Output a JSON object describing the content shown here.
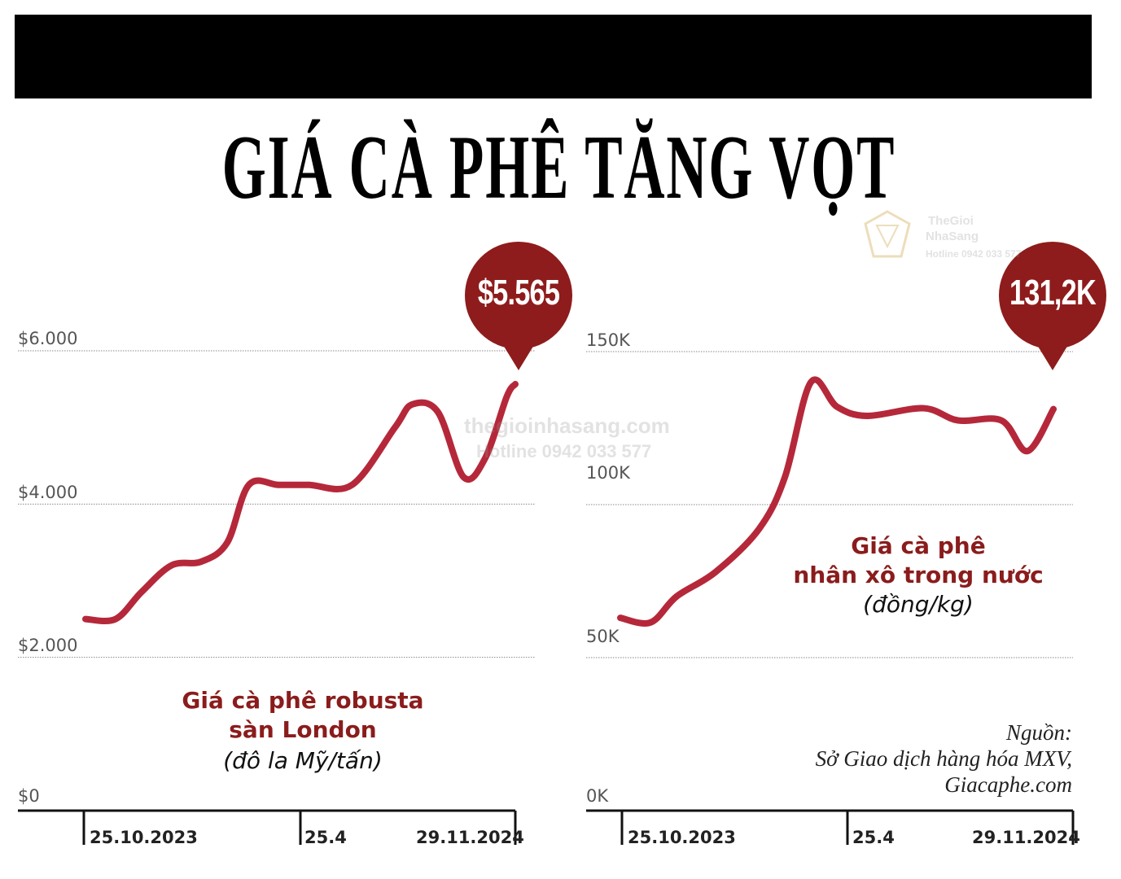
{
  "title": "GIÁ CÀ PHÊ TĂNG VỌT",
  "colors": {
    "accent": "#b5283a",
    "bubble": "#8e1c1c",
    "title_red": "#8b1c1c"
  },
  "watermark": {
    "site": "thegioinhasang.com",
    "hotline": "Hotline 0942 033 577",
    "brand_line1": "TheGioi",
    "brand_line2": "NhaSang",
    "brand_hotline": "Hotline 0942 033 577"
  },
  "source": {
    "line1": "Nguồn:",
    "line2": "Sở Giao dịch hàng hóa MXV,",
    "line3": "Giacaphe.com"
  },
  "chart_data": [
    {
      "type": "line",
      "title": "Giá cà phê robusta",
      "title_line2": "sàn London",
      "unit": "(đô la Mỹ/tấn)",
      "callout": "$5.565",
      "ylim": [
        0,
        6000
      ],
      "yticks": [
        "$6.000",
        "$4.000",
        "$2.000",
        "$0"
      ],
      "ytick_values": [
        6000,
        4000,
        2000,
        0
      ],
      "xticks": [
        "25.10.2023",
        "25.4",
        "29.11.2024"
      ],
      "series": [
        {
          "x": [
            0,
            0.07,
            0.13,
            0.2,
            0.27,
            0.33,
            0.38,
            0.45,
            0.52,
            0.62,
            0.72,
            0.76,
            0.82,
            0.88,
            0.93,
            0.98,
            1.0
          ],
          "values": [
            2500,
            2500,
            2850,
            3200,
            3250,
            3500,
            4250,
            4250,
            4250,
            4250,
            5000,
            5300,
            5200,
            4350,
            4600,
            5400,
            5565
          ]
        }
      ]
    },
    {
      "type": "line",
      "title": "Giá cà phê",
      "title_line2": "nhân xô trong nước",
      "unit": "(đồng/kg)",
      "callout": "131,2K",
      "ylim": [
        0,
        150000
      ],
      "yticks": [
        "150K",
        "100K",
        "50K",
        "0K"
      ],
      "ytick_values": [
        150000,
        100000,
        50000,
        0
      ],
      "xticks": [
        "25.10.2023",
        "25.4",
        "29.11.2024"
      ],
      "series": [
        {
          "x": [
            0,
            0.07,
            0.13,
            0.22,
            0.32,
            0.38,
            0.44,
            0.5,
            0.57,
            0.7,
            0.78,
            0.88,
            0.94,
            1.0
          ],
          "values": [
            63000,
            61500,
            70000,
            78000,
            92000,
            109000,
            140000,
            132000,
            129000,
            131500,
            127500,
            127500,
            117500,
            131200
          ]
        }
      ]
    }
  ]
}
